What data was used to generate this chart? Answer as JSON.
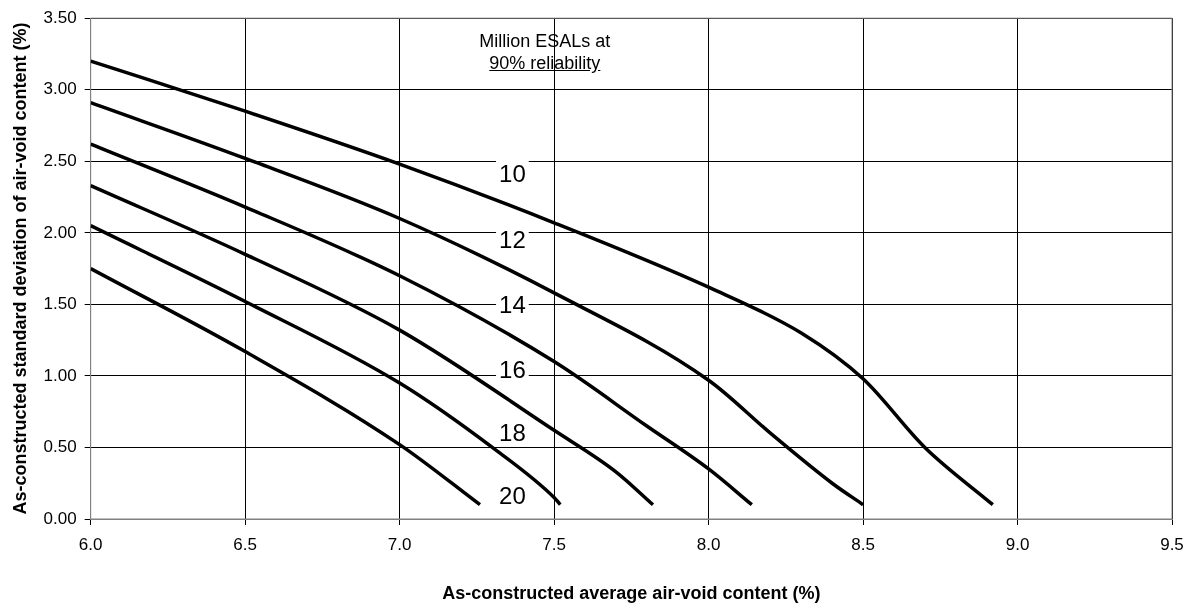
{
  "chart_data": {
    "type": "line",
    "xlabel": "As-constructed average air-void content (%)",
    "ylabel": "As-constructed standard deviation of air-void content (%)",
    "legend_title": "Million ESALs at 90% reliability",
    "xlim": [
      6.0,
      9.5
    ],
    "ylim": [
      0,
      3.5
    ],
    "xticks": [
      {
        "value": 6,
        "label": "6.0"
      },
      {
        "value": 6.5,
        "label": "6.5"
      },
      {
        "value": 7,
        "label": "7.0"
      },
      {
        "value": 7.5,
        "label": "7.5"
      },
      {
        "value": 8,
        "label": "8.0"
      },
      {
        "value": 8.5,
        "label": "8.5"
      },
      {
        "value": 9,
        "label": "9.0"
      },
      {
        "value": 9.5,
        "label": "9.5"
      }
    ],
    "yticks": [
      {
        "value": 0,
        "label": "0.00"
      },
      {
        "value": 0.5,
        "label": "0.50"
      },
      {
        "value": 1,
        "label": "1.00"
      },
      {
        "value": 1.5,
        "label": "1.50"
      },
      {
        "value": 2,
        "label": "2.00"
      },
      {
        "value": 2.5,
        "label": "2.50"
      },
      {
        "value": 3,
        "label": "3.00"
      },
      {
        "value": 3.5,
        "label": "3.50"
      }
    ],
    "grid": true,
    "legend": false,
    "marker": "none",
    "line_style": "solid",
    "series": [
      {
        "name": "10",
        "color": "#000000",
        "x": [
          6.0,
          6.5,
          7.0,
          7.5,
          8.0,
          8.3,
          8.5,
          8.7,
          8.92
        ],
        "values": [
          3.2,
          2.85,
          2.48,
          2.07,
          1.62,
          1.3,
          0.98,
          0.5,
          0.1
        ]
      },
      {
        "name": "12",
        "color": "#000000",
        "x": [
          6.0,
          6.5,
          7.0,
          7.5,
          8.0,
          8.2,
          8.4,
          8.5
        ],
        "values": [
          2.91,
          2.52,
          2.1,
          1.58,
          0.97,
          0.6,
          0.25,
          0.1
        ]
      },
      {
        "name": "14",
        "color": "#000000",
        "x": [
          6.0,
          6.5,
          7.0,
          7.5,
          7.8,
          8.0,
          8.14
        ],
        "values": [
          2.62,
          2.18,
          1.7,
          1.1,
          0.65,
          0.35,
          0.1
        ]
      },
      {
        "name": "16",
        "color": "#000000",
        "x": [
          6.0,
          6.5,
          7.0,
          7.5,
          7.7,
          7.82
        ],
        "values": [
          2.33,
          1.85,
          1.32,
          0.62,
          0.33,
          0.1
        ]
      },
      {
        "name": "18",
        "color": "#000000",
        "x": [
          6.0,
          6.5,
          7.0,
          7.3,
          7.5,
          7.52
        ],
        "values": [
          2.05,
          1.52,
          0.95,
          0.5,
          0.15,
          0.1
        ]
      },
      {
        "name": "20",
        "color": "#000000",
        "x": [
          6.0,
          6.5,
          7.0,
          7.26
        ],
        "values": [
          1.75,
          1.17,
          0.52,
          0.1
        ]
      }
    ]
  }
}
